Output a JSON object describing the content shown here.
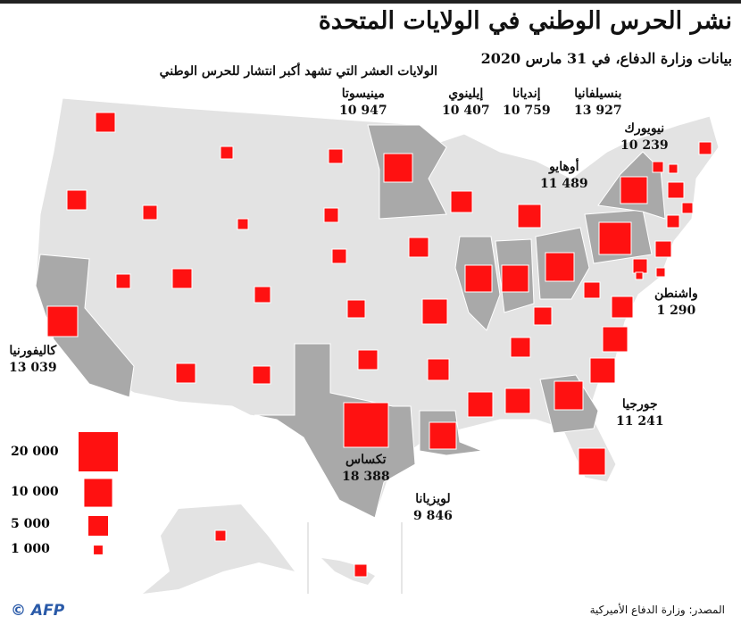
{
  "title": "نشر الحرس الوطني في الولايات المتحدة",
  "subtitle": "بيانات وزارة الدفاع، في 31 مارس 2020",
  "top_ten_heading": "الولايات العشر التي تشهد أكبر انتشار للحرس الوطني",
  "source": "المصدر: وزارة الدفاع الأميركية",
  "credit": "© AFP",
  "colors": {
    "marker": "#ff1111",
    "state": "#e3e3e3",
    "highlight": "#a9a9a9",
    "border": "#ffffff"
  },
  "labeled_states": [
    {
      "name": "بنسيلفانيا",
      "value": "13 927"
    },
    {
      "name": "إنديانا",
      "value": "10 759"
    },
    {
      "name": "إيلينوي",
      "value": "10 407"
    },
    {
      "name": "مينيسوتا",
      "value": "10 947"
    },
    {
      "name": "نيويورك",
      "value": "10 239"
    },
    {
      "name": "أوهايو",
      "value": "11 489"
    },
    {
      "name": "واشنطن",
      "value": "1 290"
    },
    {
      "name": "كاليفورنيا",
      "value": "13 039"
    },
    {
      "name": "جورجيا",
      "value": "11 241"
    },
    {
      "name": "تكساس",
      "value": "18 388"
    },
    {
      "name": "لويزيانا",
      "value": "9 846"
    }
  ],
  "legend": [
    {
      "label": "20 000",
      "value": 20000
    },
    {
      "label": "10 000",
      "value": 10000
    },
    {
      "label": "5 000",
      "value": 5000
    },
    {
      "label": "1 000",
      "value": 1000
    }
  ]
}
